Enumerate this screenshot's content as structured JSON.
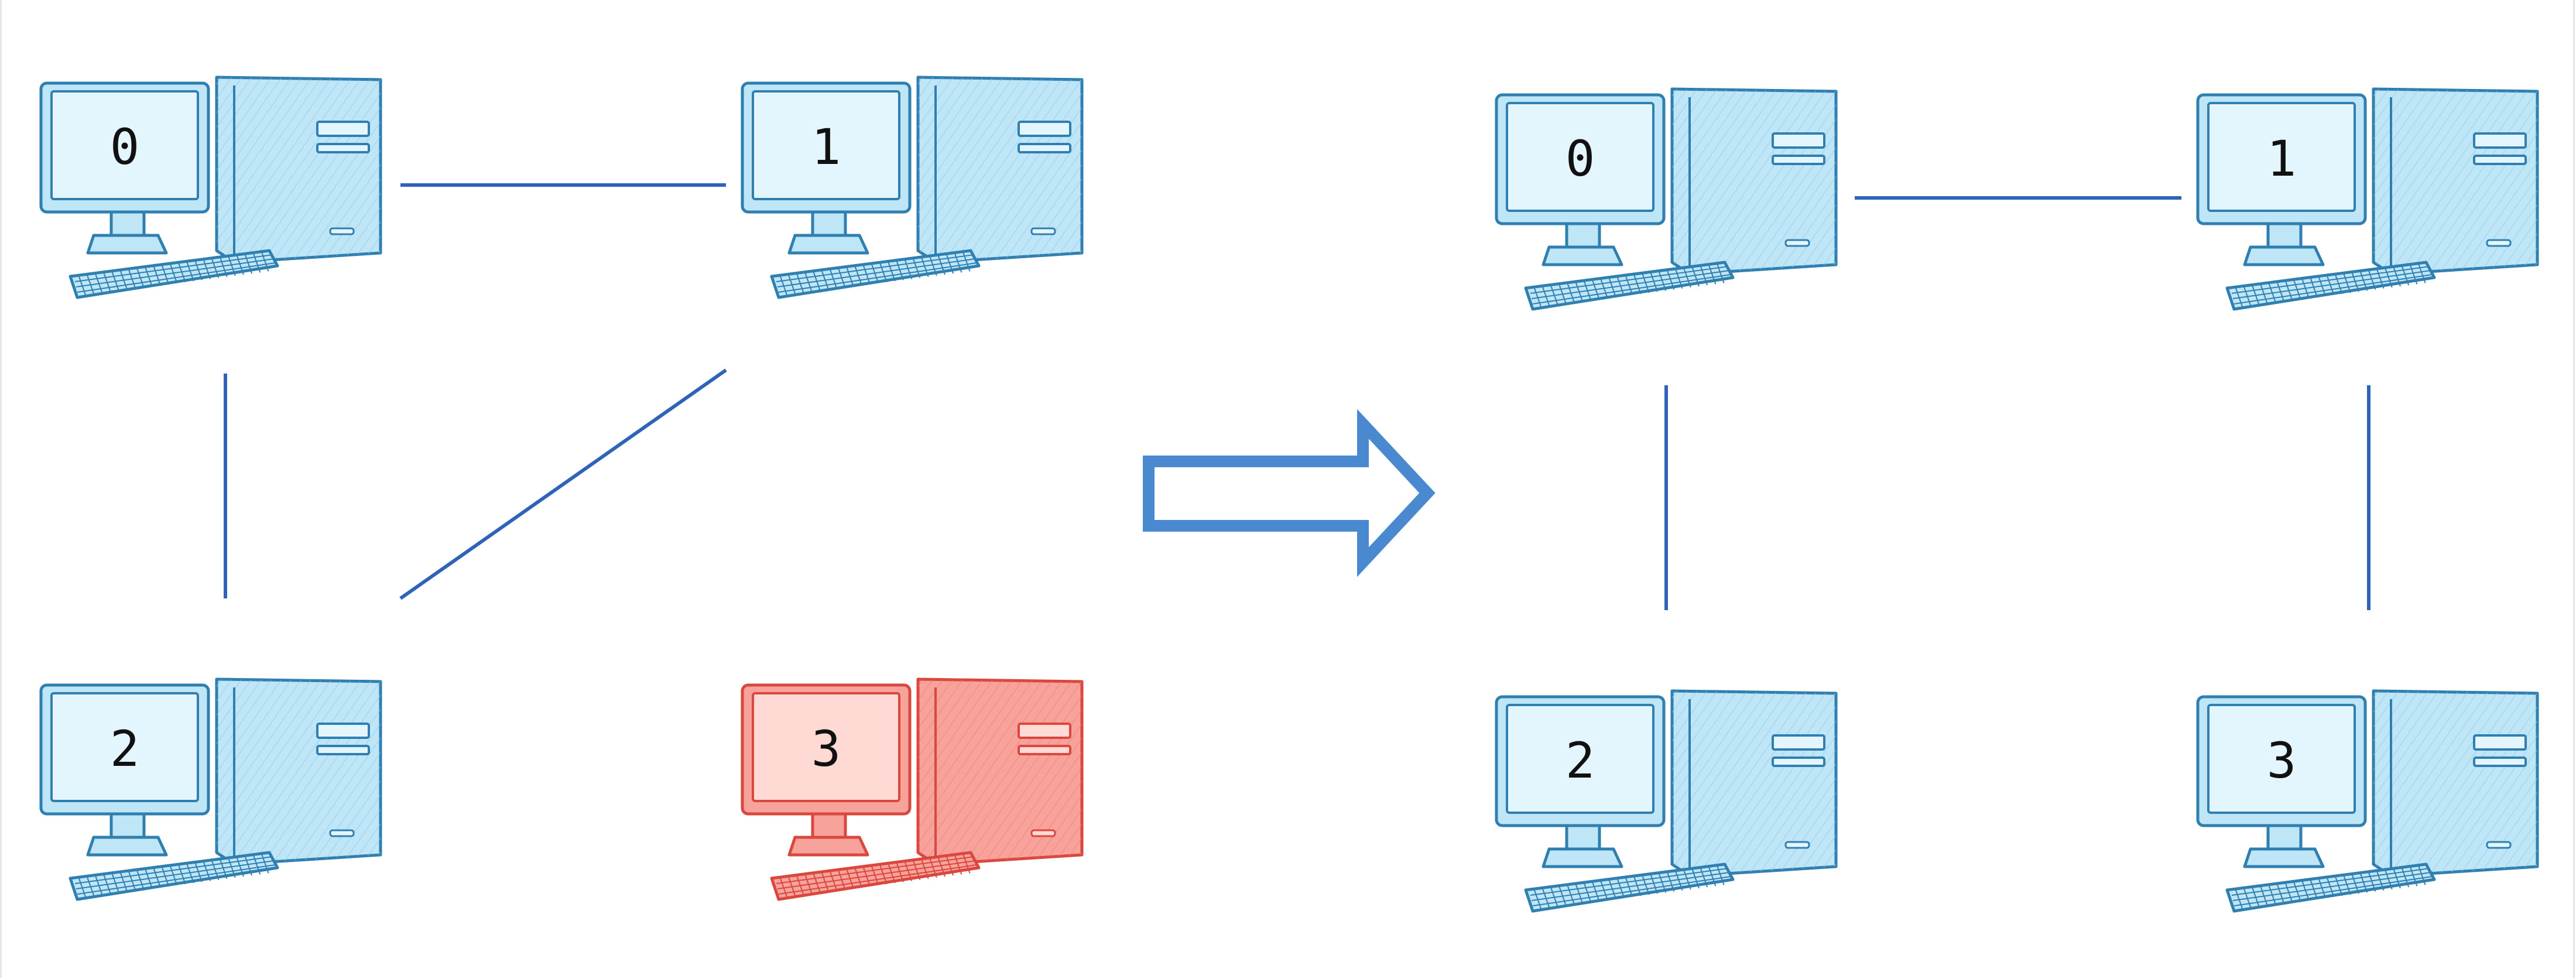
{
  "colors": {
    "link": "#2f62b9",
    "arrow": "#4a89d0",
    "normal_fill": "#bfe6f7",
    "normal_light": "#e4f6fd",
    "normal_stroke": "#2f7fb0",
    "failed_fill": "#f7a29a",
    "failed_light": "#ffd9d4",
    "failed_stroke": "#d9473f",
    "label": "#111111"
  },
  "before": {
    "nodes": [
      {
        "id": "0",
        "status": "normal"
      },
      {
        "id": "1",
        "status": "normal"
      },
      {
        "id": "2",
        "status": "normal"
      },
      {
        "id": "3",
        "status": "failed"
      }
    ],
    "links": [
      [
        "0",
        "1"
      ],
      [
        "0",
        "2"
      ],
      [
        "1",
        "2"
      ]
    ]
  },
  "transition": {
    "icon": "right-arrow-icon"
  },
  "after": {
    "nodes": [
      {
        "id": "0",
        "status": "normal"
      },
      {
        "id": "1",
        "status": "normal"
      },
      {
        "id": "2",
        "status": "normal"
      },
      {
        "id": "3",
        "status": "normal"
      }
    ],
    "links": [
      [
        "0",
        "1"
      ],
      [
        "0",
        "2"
      ],
      [
        "1",
        "3"
      ]
    ]
  }
}
